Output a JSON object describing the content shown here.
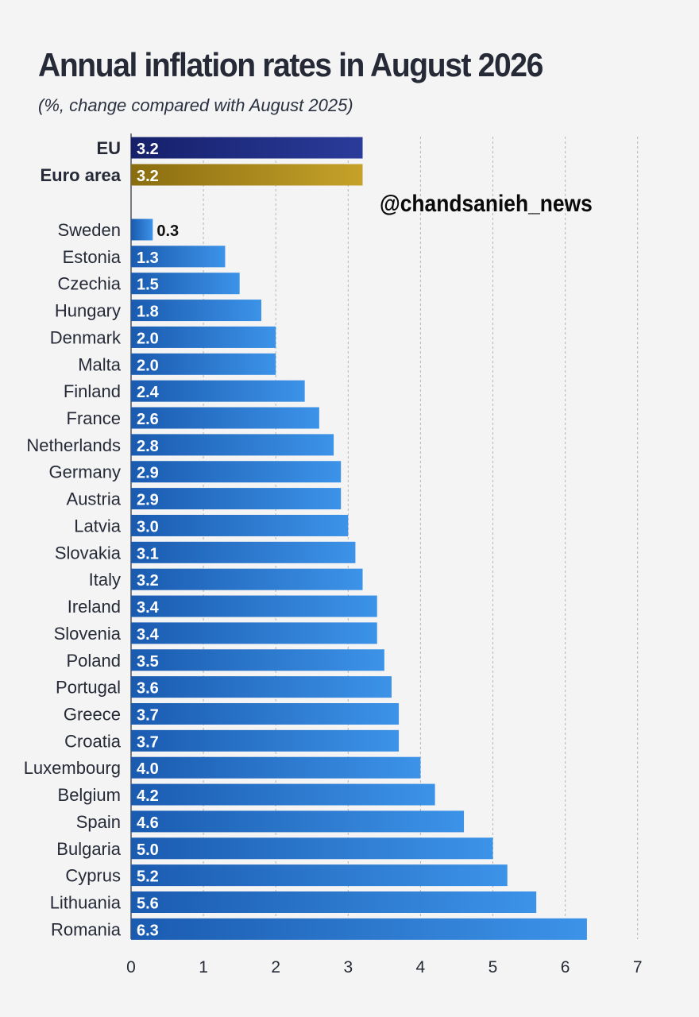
{
  "title": "Annual inflation rates in August 2026",
  "subtitle": "(%, change compared with August 2025)",
  "watermark": "@chandsanieh_news",
  "colors": {
    "background": "#f4f4f5",
    "eu_bar": "#1e2d82",
    "euro_area_bar": "#b08e18",
    "country_bar_dark": "#1a5bb0",
    "country_bar_light": "#3c93e8",
    "grid": "#b5b5b5",
    "text": "#252a36"
  },
  "chart_data": {
    "type": "bar",
    "orientation": "horizontal",
    "title": "Annual inflation rates in August 2026",
    "subtitle": "(%, change compared with August 2025)",
    "xlim": [
      0,
      7
    ],
    "x_ticks": [
      "0",
      "1",
      "2",
      "3",
      "4",
      "5",
      "6",
      "7"
    ],
    "grid": "vertical dashed",
    "aggregates": [
      {
        "label": "EU",
        "value": 3.2,
        "value_label": "3.2",
        "color": "#1e2d82"
      },
      {
        "label": "Euro area",
        "value": 3.2,
        "value_label": "3.2",
        "color": "#b08e18"
      }
    ],
    "categories": [
      "Sweden",
      "Estonia",
      "Czechia",
      "Hungary",
      "Denmark",
      "Malta",
      "Finland",
      "France",
      "Netherlands",
      "Germany",
      "Austria",
      "Latvia",
      "Slovakia",
      "Italy",
      "Ireland",
      "Slovenia",
      "Poland",
      "Portugal",
      "Greece",
      "Croatia",
      "Luxembourg",
      "Belgium",
      "Spain",
      "Bulgaria",
      "Cyprus",
      "Lithuania",
      "Romania"
    ],
    "values": [
      0.3,
      1.3,
      1.5,
      1.8,
      2.0,
      2.0,
      2.4,
      2.6,
      2.8,
      2.9,
      2.9,
      3.0,
      3.1,
      3.2,
      3.4,
      3.4,
      3.5,
      3.6,
      3.7,
      3.7,
      4.0,
      4.2,
      4.6,
      5.0,
      5.2,
      5.6,
      6.3
    ],
    "value_labels": [
      "0.3",
      "1.3",
      "1.5",
      "1.8",
      "2.0",
      "2.0",
      "2.4",
      "2.6",
      "2.8",
      "2.9",
      "2.9",
      "3.0",
      "3.1",
      "3.2",
      "3.4",
      "3.4",
      "3.5",
      "3.6",
      "3.7",
      "3.7",
      "4.0",
      "4.2",
      "4.6",
      "5.0",
      "5.2",
      "5.6",
      "6.3"
    ]
  }
}
